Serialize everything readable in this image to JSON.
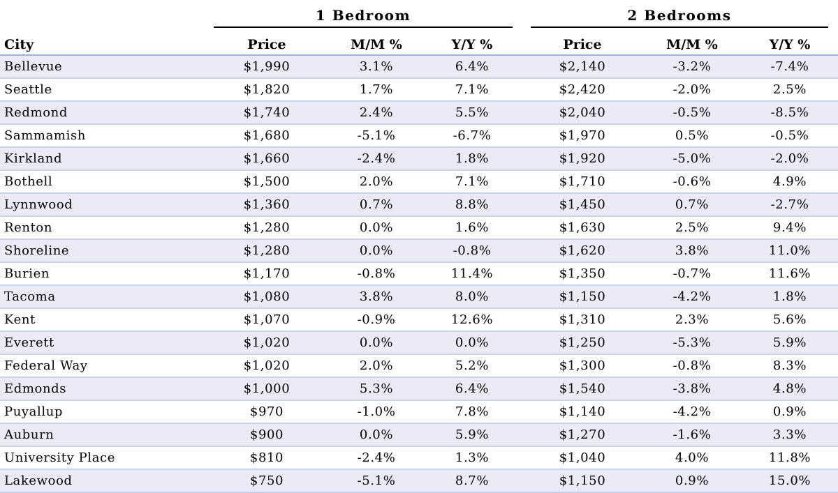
{
  "groups": {
    "one_bedroom": "1 Bedroom",
    "two_bedrooms": "2 Bedrooms"
  },
  "columns": [
    "City",
    "Price",
    "M/M %",
    "Y/Y %",
    "Price",
    "M/M %",
    "Y/Y %"
  ],
  "rows": [
    [
      "Bellevue",
      "$1,990",
      "3.1%",
      "6.4%",
      "$2,140",
      "-3.2%",
      "-7.4%"
    ],
    [
      "Seattle",
      "$1,820",
      "1.7%",
      "7.1%",
      "$2,420",
      "-2.0%",
      "2.5%"
    ],
    [
      "Redmond",
      "$1,740",
      "2.4%",
      "5.5%",
      "$2,040",
      "-0.5%",
      "-8.5%"
    ],
    [
      "Sammamish",
      "$1,680",
      "-5.1%",
      "-6.7%",
      "$1,970",
      "0.5%",
      "-0.5%"
    ],
    [
      "Kirkland",
      "$1,660",
      "-2.4%",
      "1.8%",
      "$1,920",
      "-5.0%",
      "-2.0%"
    ],
    [
      "Bothell",
      "$1,500",
      "2.0%",
      "7.1%",
      "$1,710",
      "-0.6%",
      "4.9%"
    ],
    [
      "Lynnwood",
      "$1,360",
      "0.7%",
      "8.8%",
      "$1,450",
      "0.7%",
      "-2.7%"
    ],
    [
      "Renton",
      "$1,280",
      "0.0%",
      "1.6%",
      "$1,630",
      "2.5%",
      "9.4%"
    ],
    [
      "Shoreline",
      "$1,280",
      "0.0%",
      "-0.8%",
      "$1,620",
      "3.8%",
      "11.0%"
    ],
    [
      "Burien",
      "$1,170",
      "-0.8%",
      "11.4%",
      "$1,350",
      "-0.7%",
      "11.6%"
    ],
    [
      "Tacoma",
      "$1,080",
      "3.8%",
      "8.0%",
      "$1,150",
      "-4.2%",
      "1.8%"
    ],
    [
      "Kent",
      "$1,070",
      "-0.9%",
      "12.6%",
      "$1,310",
      "2.3%",
      "5.6%"
    ],
    [
      "Everett",
      "$1,020",
      "0.0%",
      "0.0%",
      "$1,250",
      "-5.3%",
      "5.9%"
    ],
    [
      "Federal Way",
      "$1,020",
      "2.0%",
      "5.2%",
      "$1,300",
      "-0.8%",
      "8.3%"
    ],
    [
      "Edmonds",
      "$1,000",
      "5.3%",
      "6.4%",
      "$1,540",
      "-3.8%",
      "4.8%"
    ],
    [
      "Puyallup",
      "$970",
      "-1.0%",
      "7.8%",
      "$1,140",
      "-4.2%",
      "0.9%"
    ],
    [
      "Auburn",
      "$900",
      "0.0%",
      "5.9%",
      "$1,270",
      "-1.6%",
      "3.3%"
    ],
    [
      "University Place",
      "$810",
      "-2.4%",
      "1.3%",
      "$1,040",
      "4.0%",
      "11.8%"
    ],
    [
      "Lakewood",
      "$750",
      "-5.1%",
      "8.7%",
      "$1,150",
      "0.9%",
      "15.0%"
    ]
  ],
  "colors": {
    "shaded_row": "#ebebf7",
    "row_divider": "#c5d3ec",
    "header_divider": "#9ab4df"
  }
}
